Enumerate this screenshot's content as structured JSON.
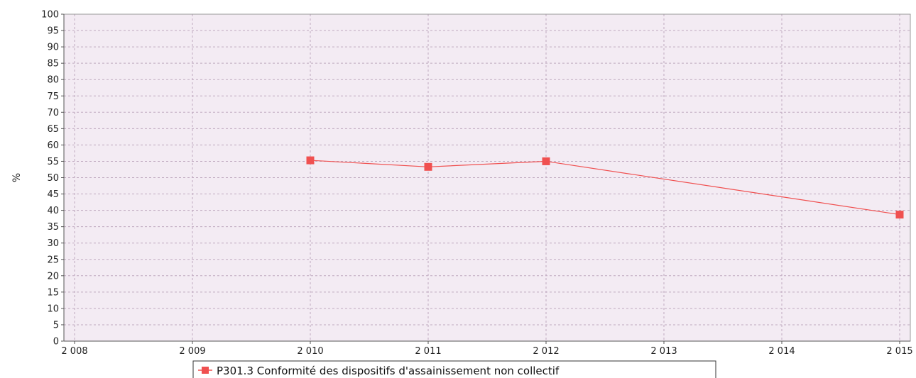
{
  "chart_data": {
    "type": "line",
    "title": "",
    "xlabel": "",
    "ylabel": "%",
    "xlim": [
      2008,
      2015
    ],
    "ylim": [
      0,
      100
    ],
    "x_ticks": [
      "2 008",
      "2 009",
      "2 010",
      "2 011",
      "2 012",
      "2 013",
      "2 014",
      "2 015"
    ],
    "y_ticks": [
      "0",
      "5",
      "10",
      "15",
      "20",
      "25",
      "30",
      "35",
      "40",
      "45",
      "50",
      "55",
      "60",
      "65",
      "70",
      "75",
      "80",
      "85",
      "90",
      "95",
      "100"
    ],
    "grid": true,
    "legend_position": "bottom-center",
    "colors": {
      "plot_background": "#f3ebf3",
      "grid": "#bfa9bf",
      "series": "#f05050"
    },
    "series": [
      {
        "name": "P301.3 Conformité des dispositifs d'assainissement non collectif",
        "x": [
          2010,
          2011,
          2012,
          2015
        ],
        "values": [
          55.3,
          53.3,
          55.0,
          38.7
        ]
      }
    ]
  }
}
